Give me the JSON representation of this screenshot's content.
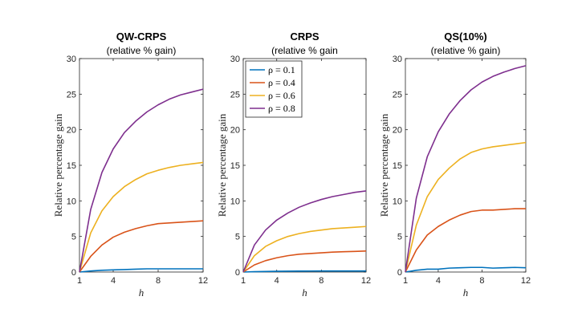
{
  "chart_data": [
    {
      "type": "line",
      "title": "QW-CRPS",
      "subtitle": "(relative % gain)",
      "xlabel": "h",
      "ylabel": "Relative percentage gain",
      "xlim": [
        1,
        12
      ],
      "ylim": [
        0,
        30
      ],
      "xticks": [
        1,
        4,
        8,
        12
      ],
      "yticks": [
        0,
        5,
        10,
        15,
        20,
        25,
        30
      ],
      "grid": false,
      "legend": null,
      "x": [
        1,
        2,
        3,
        4,
        5,
        6,
        7,
        8,
        9,
        10,
        11,
        12
      ],
      "series": [
        {
          "label": "ρ = 0.1",
          "color": "#0072BD",
          "values": [
            0,
            0.15,
            0.25,
            0.3,
            0.35,
            0.4,
            0.45,
            0.45,
            0.45,
            0.45,
            0.45,
            0.45
          ]
        },
        {
          "label": "ρ = 0.4",
          "color": "#D95319",
          "values": [
            0,
            2.2,
            3.8,
            4.9,
            5.6,
            6.1,
            6.5,
            6.8,
            6.9,
            7.0,
            7.1,
            7.2
          ]
        },
        {
          "label": "ρ = 0.6",
          "color": "#EDB120",
          "values": [
            0,
            5.5,
            8.6,
            10.6,
            12.0,
            13.0,
            13.8,
            14.3,
            14.7,
            15.0,
            15.2,
            15.4
          ]
        },
        {
          "label": "ρ = 0.8",
          "color": "#7E2F8E",
          "values": [
            0,
            8.8,
            14.0,
            17.3,
            19.6,
            21.2,
            22.5,
            23.5,
            24.3,
            24.9,
            25.3,
            25.7
          ]
        }
      ]
    },
    {
      "type": "line",
      "title": "CRPS",
      "subtitle": "(relative % gain",
      "xlabel": "h",
      "ylabel": "Relative percentage gain",
      "xlim": [
        1,
        12
      ],
      "ylim": [
        0,
        30
      ],
      "xticks": [
        1,
        4,
        8,
        12
      ],
      "yticks": [
        0,
        5,
        10,
        15,
        20,
        25,
        30
      ],
      "grid": false,
      "legend": "top-left",
      "legend_entries": [
        "ρ = 0.1",
        "ρ = 0.4",
        "ρ = 0.6",
        "ρ = 0.8"
      ],
      "x": [
        1,
        2,
        3,
        4,
        5,
        6,
        7,
        8,
        9,
        10,
        11,
        12
      ],
      "series": [
        {
          "label": "ρ = 0.1",
          "color": "#0072BD",
          "values": [
            0,
            0.05,
            0.08,
            0.1,
            0.12,
            0.13,
            0.14,
            0.15,
            0.15,
            0.15,
            0.15,
            0.15
          ]
        },
        {
          "label": "ρ = 0.4",
          "color": "#D95319",
          "values": [
            0,
            1.0,
            1.6,
            2.0,
            2.3,
            2.5,
            2.6,
            2.7,
            2.8,
            2.85,
            2.9,
            2.95
          ]
        },
        {
          "label": "ρ = 0.6",
          "color": "#EDB120",
          "values": [
            0,
            2.3,
            3.6,
            4.4,
            5.0,
            5.4,
            5.7,
            5.9,
            6.1,
            6.2,
            6.3,
            6.4
          ]
        },
        {
          "label": "ρ = 0.8",
          "color": "#7E2F8E",
          "values": [
            0,
            3.8,
            5.9,
            7.3,
            8.3,
            9.1,
            9.7,
            10.2,
            10.6,
            10.9,
            11.2,
            11.4
          ]
        }
      ]
    },
    {
      "type": "line",
      "title": "QS(10%)",
      "subtitle": "(relative % gain)",
      "xlabel": "h",
      "ylabel": "Relative percentage gain",
      "xlim": [
        1,
        12
      ],
      "ylim": [
        0,
        30
      ],
      "xticks": [
        1,
        4,
        8,
        12
      ],
      "yticks": [
        0,
        5,
        10,
        15,
        20,
        25,
        30
      ],
      "grid": false,
      "legend": null,
      "x": [
        1,
        2,
        3,
        4,
        5,
        6,
        7,
        8,
        9,
        10,
        11,
        12
      ],
      "series": [
        {
          "label": "ρ = 0.1",
          "color": "#0072BD",
          "values": [
            0,
            0.25,
            0.4,
            0.4,
            0.55,
            0.6,
            0.65,
            0.65,
            0.55,
            0.6,
            0.65,
            0.6
          ]
        },
        {
          "label": "ρ = 0.4",
          "color": "#D95319",
          "values": [
            0,
            3.1,
            5.2,
            6.4,
            7.3,
            8.0,
            8.5,
            8.7,
            8.7,
            8.8,
            8.9,
            8.9
          ]
        },
        {
          "label": "ρ = 0.6",
          "color": "#EDB120",
          "values": [
            0,
            6.6,
            10.6,
            13.0,
            14.6,
            15.9,
            16.8,
            17.3,
            17.6,
            17.8,
            18.0,
            18.2
          ]
        },
        {
          "label": "ρ = 0.8",
          "color": "#7E2F8E",
          "values": [
            0,
            10.4,
            16.2,
            19.7,
            22.2,
            24.1,
            25.6,
            26.7,
            27.5,
            28.1,
            28.6,
            29.0
          ]
        }
      ]
    }
  ]
}
